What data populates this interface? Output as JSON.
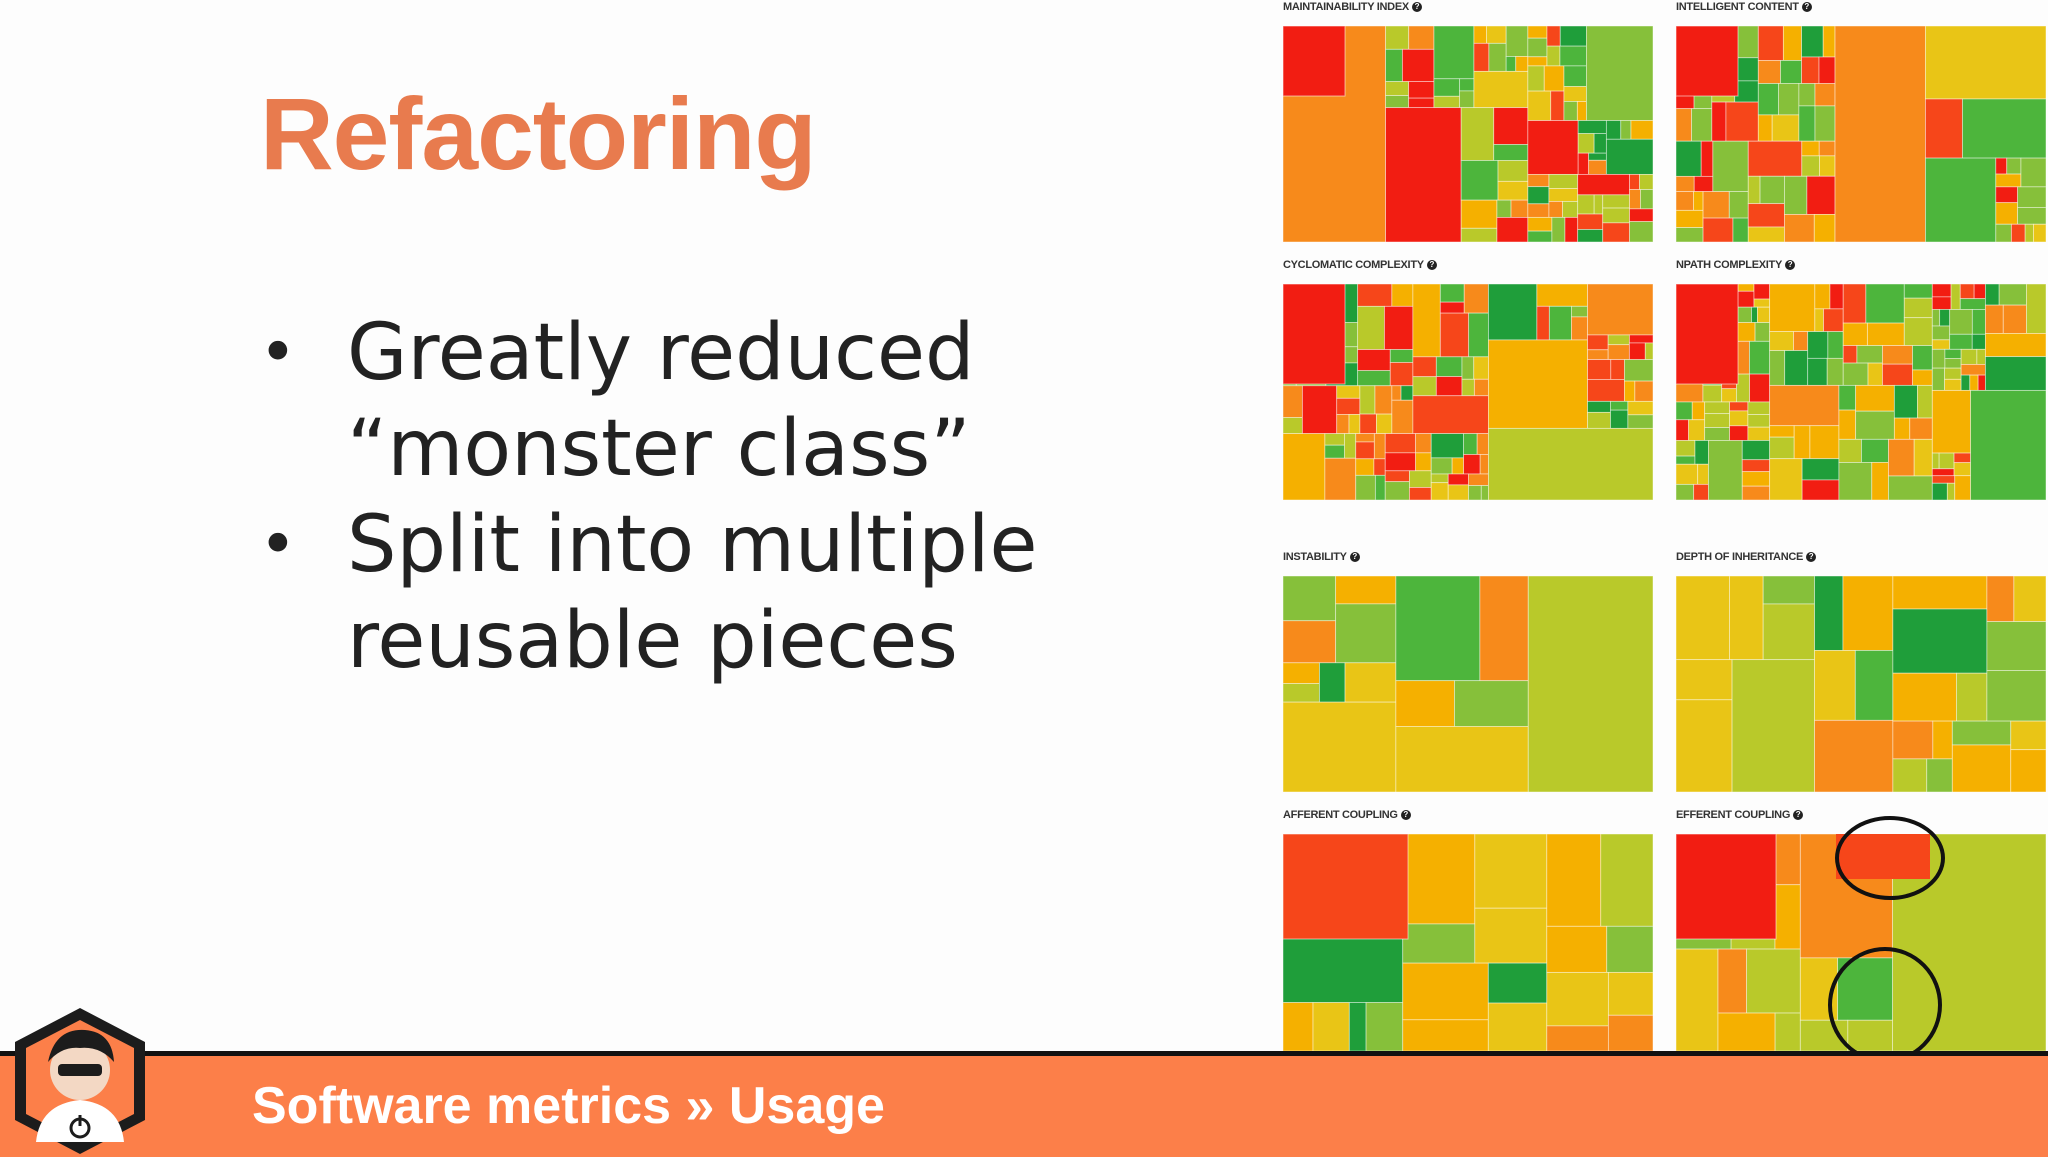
{
  "slide": {
    "title": "Refactoring",
    "bullets": [
      {
        "marker": "•",
        "lines": [
          "Greatly reduced",
          "“monster class”"
        ]
      },
      {
        "marker": "•",
        "lines": [
          "Split into multiple",
          "reusable pieces"
        ]
      }
    ]
  },
  "treemaps": [
    {
      "label": "MAINTAINABILITY INDEX",
      "info": "?",
      "seed": 11
    },
    {
      "label": "INTELLIGENT CONTENT",
      "info": "?",
      "seed": 23
    },
    {
      "label": "CYCLOMATIC COMPLEXITY",
      "info": "?",
      "seed": 37
    },
    {
      "label": "NPATH COMPLEXITY",
      "info": "?",
      "seed": 41
    },
    {
      "label": "INSTABILITY",
      "info": "?",
      "seed": 53
    },
    {
      "label": "DEPTH OF INHERITANCE",
      "info": "?",
      "seed": 67
    },
    {
      "label": "AFFERENT COUPLING",
      "info": "?",
      "seed": 71
    },
    {
      "label": "EFFERENT COUPLING",
      "info": "?",
      "seed": 83
    }
  ],
  "palette": {
    "red": "#f21d12",
    "red_orange": "#f6461a",
    "orange": "#f78a1b",
    "amber": "#f5b000",
    "yellow": "#e9c516",
    "yellow_green": "#b9c92a",
    "light_green": "#86c03a",
    "green": "#4db53c",
    "dark_green": "#1f9e3a",
    "accent_title": "#e87b4e",
    "footer_bg": "#fc7f49"
  },
  "footer": {
    "text": "Software metrics » Usage"
  },
  "icons": {
    "logo": "developer-avatar-logo",
    "info": "question-circle-icon",
    "annotation": "hand-drawn-circle"
  }
}
